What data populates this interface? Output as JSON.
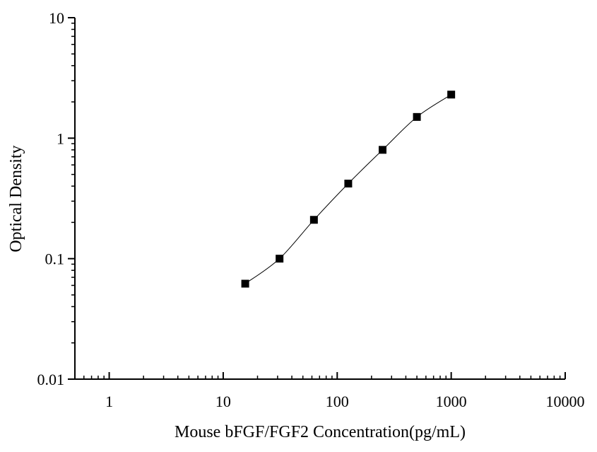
{
  "chart_data": {
    "type": "scatter",
    "title": "",
    "xlabel": "Mouse bFGF/FGF2 Concentration(pg/mL)",
    "ylabel": "Optical Density",
    "xscale": "log",
    "yscale": "log",
    "xlim": [
      0.5,
      10000
    ],
    "ylim": [
      0.01,
      10
    ],
    "grid": false,
    "legend": "none",
    "xticks": [
      1,
      10,
      100,
      1000,
      10000
    ],
    "xtick_labels": [
      "1",
      "10",
      "100",
      "1000",
      "10000"
    ],
    "yticks": [
      0.01,
      0.1,
      1,
      10
    ],
    "ytick_labels": [
      "0.01",
      "0.1",
      "1",
      "10"
    ],
    "marker": "square",
    "marker_color": "#000000",
    "line_color": "#000000",
    "series": [
      {
        "x": [
          15.6,
          31.2,
          62.5,
          125,
          250,
          500,
          1000
        ],
        "y": [
          0.062,
          0.1,
          0.21,
          0.42,
          0.8,
          1.5,
          2.3
        ]
      }
    ]
  }
}
